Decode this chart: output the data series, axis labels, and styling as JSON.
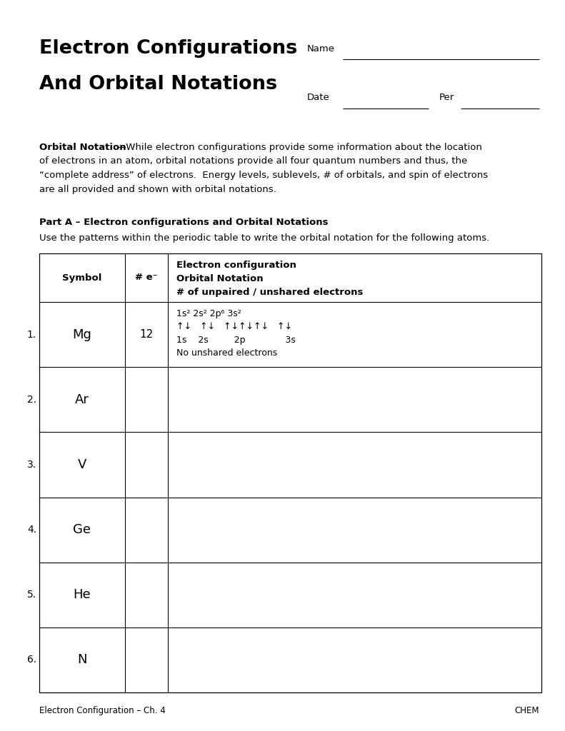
{
  "title_line1": "Electron Configurations",
  "title_line2": "And Orbital Notations",
  "name_label": "Name",
  "date_label": "Date",
  "per_label": "Per",
  "intro_bold": "Orbital Notation",
  "intro_rest": "—While electron configurations provide some information about the location",
  "intro_line2": "of electrons in an atom, orbital notations provide all four quantum numbers and thus, the",
  "intro_line3": "“complete address” of electrons.  Energy levels, sublevels, # of orbitals, and spin of electrons",
  "intro_line4": "are all provided and shown with orbital notations.",
  "part_a_heading": "Part A – Electron configurations and Orbital Notations",
  "part_a_subtext": "Use the patterns within the periodic table to write the orbital notation for the following atoms.",
  "col_header1": "Symbol",
  "col_header2": "# e⁻",
  "col_header3a": "Electron configuration",
  "col_header3b": "Orbital Notation",
  "col_header3c": "# of unpaired / unshared electrons",
  "row_data": [
    {
      "num": "1.",
      "symbol": "Mg",
      "electrons": "12"
    },
    {
      "num": "2.",
      "symbol": "Ar",
      "electrons": ""
    },
    {
      "num": "3.",
      "symbol": "V",
      "electrons": ""
    },
    {
      "num": "4.",
      "symbol": "Ge",
      "electrons": ""
    },
    {
      "num": "5.",
      "symbol": "He",
      "electrons": ""
    },
    {
      "num": "6.",
      "symbol": "N",
      "electrons": ""
    }
  ],
  "mg_config": "1s² 2s² 2p⁶ 3s²",
  "mg_orbital": "↑↓   ↑↓   ↑↓↑↓↑↓   ↑↓",
  "mg_sublevels": "1s    2s         2p              3s",
  "mg_unpaired": "No unshared electrons",
  "footer_left": "Electron Configuration – Ch. 4",
  "footer_right": "CHEM",
  "bg_color": "#ffffff"
}
